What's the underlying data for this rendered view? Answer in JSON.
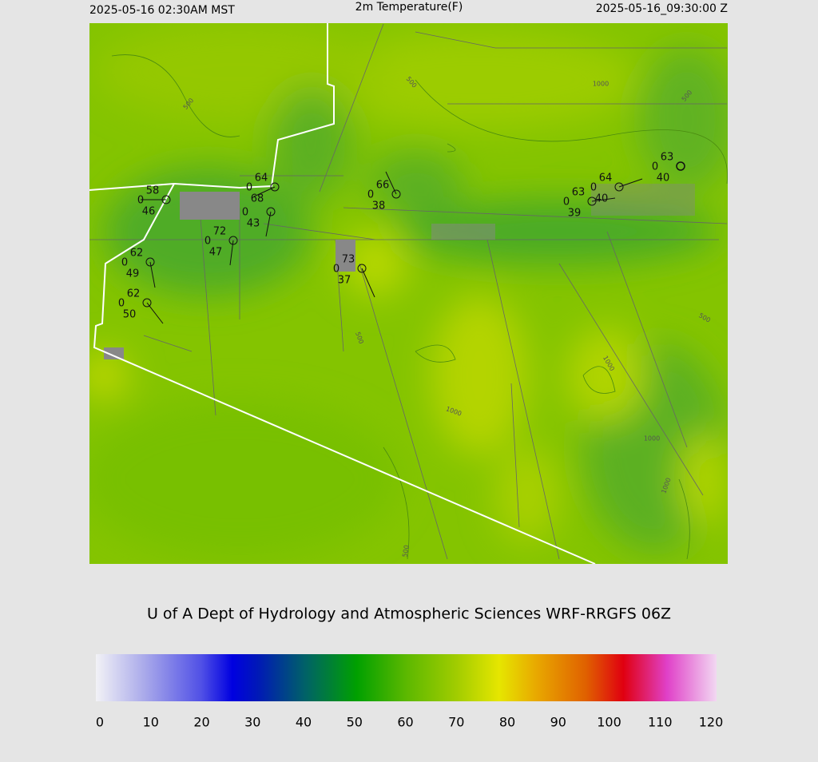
{
  "header": {
    "local_time": "2025-05-16 02:30AM MST",
    "title": "2m Temperature(F)",
    "utc_time": "2025-05-16_09:30:00 Z"
  },
  "credit": "U of A Dept of Hydrology and Atmospheric Sciences WRF-RRGFS 06Z",
  "stations": [
    {
      "temp": 58,
      "wind": 0,
      "dewpoint": 46
    },
    {
      "temp": 64,
      "wind": 0,
      "dewpoint": 68
    },
    {
      "wind": 0,
      "dewpoint": 43
    },
    {
      "temp": 72,
      "wind": 0,
      "dewpoint": 47
    },
    {
      "temp": 62,
      "wind": 0,
      "dewpoint": 49
    },
    {
      "temp": 62,
      "wind": 0,
      "dewpoint": 50
    },
    {
      "temp": 73,
      "wind": 0,
      "dewpoint": 37
    },
    {
      "temp": 66,
      "wind": 0,
      "dewpoint": 38
    },
    {
      "temp": 63,
      "wind": 0,
      "dewpoint": 39
    },
    {
      "temp": 64,
      "wind": 0,
      "dewpoint": 40
    },
    {
      "temp": 63,
      "wind": 0,
      "dewpoint": 40
    }
  ],
  "contour_labels": [
    "500",
    "500",
    "1000",
    "500",
    "500",
    "1000",
    "1000",
    "1000",
    "500",
    "1000",
    "500"
  ],
  "colorbar": {
    "lim": [
      0,
      120
    ],
    "ticks": [
      0,
      10,
      20,
      30,
      40,
      50,
      60,
      70,
      80,
      90,
      100,
      110,
      120
    ]
  }
}
